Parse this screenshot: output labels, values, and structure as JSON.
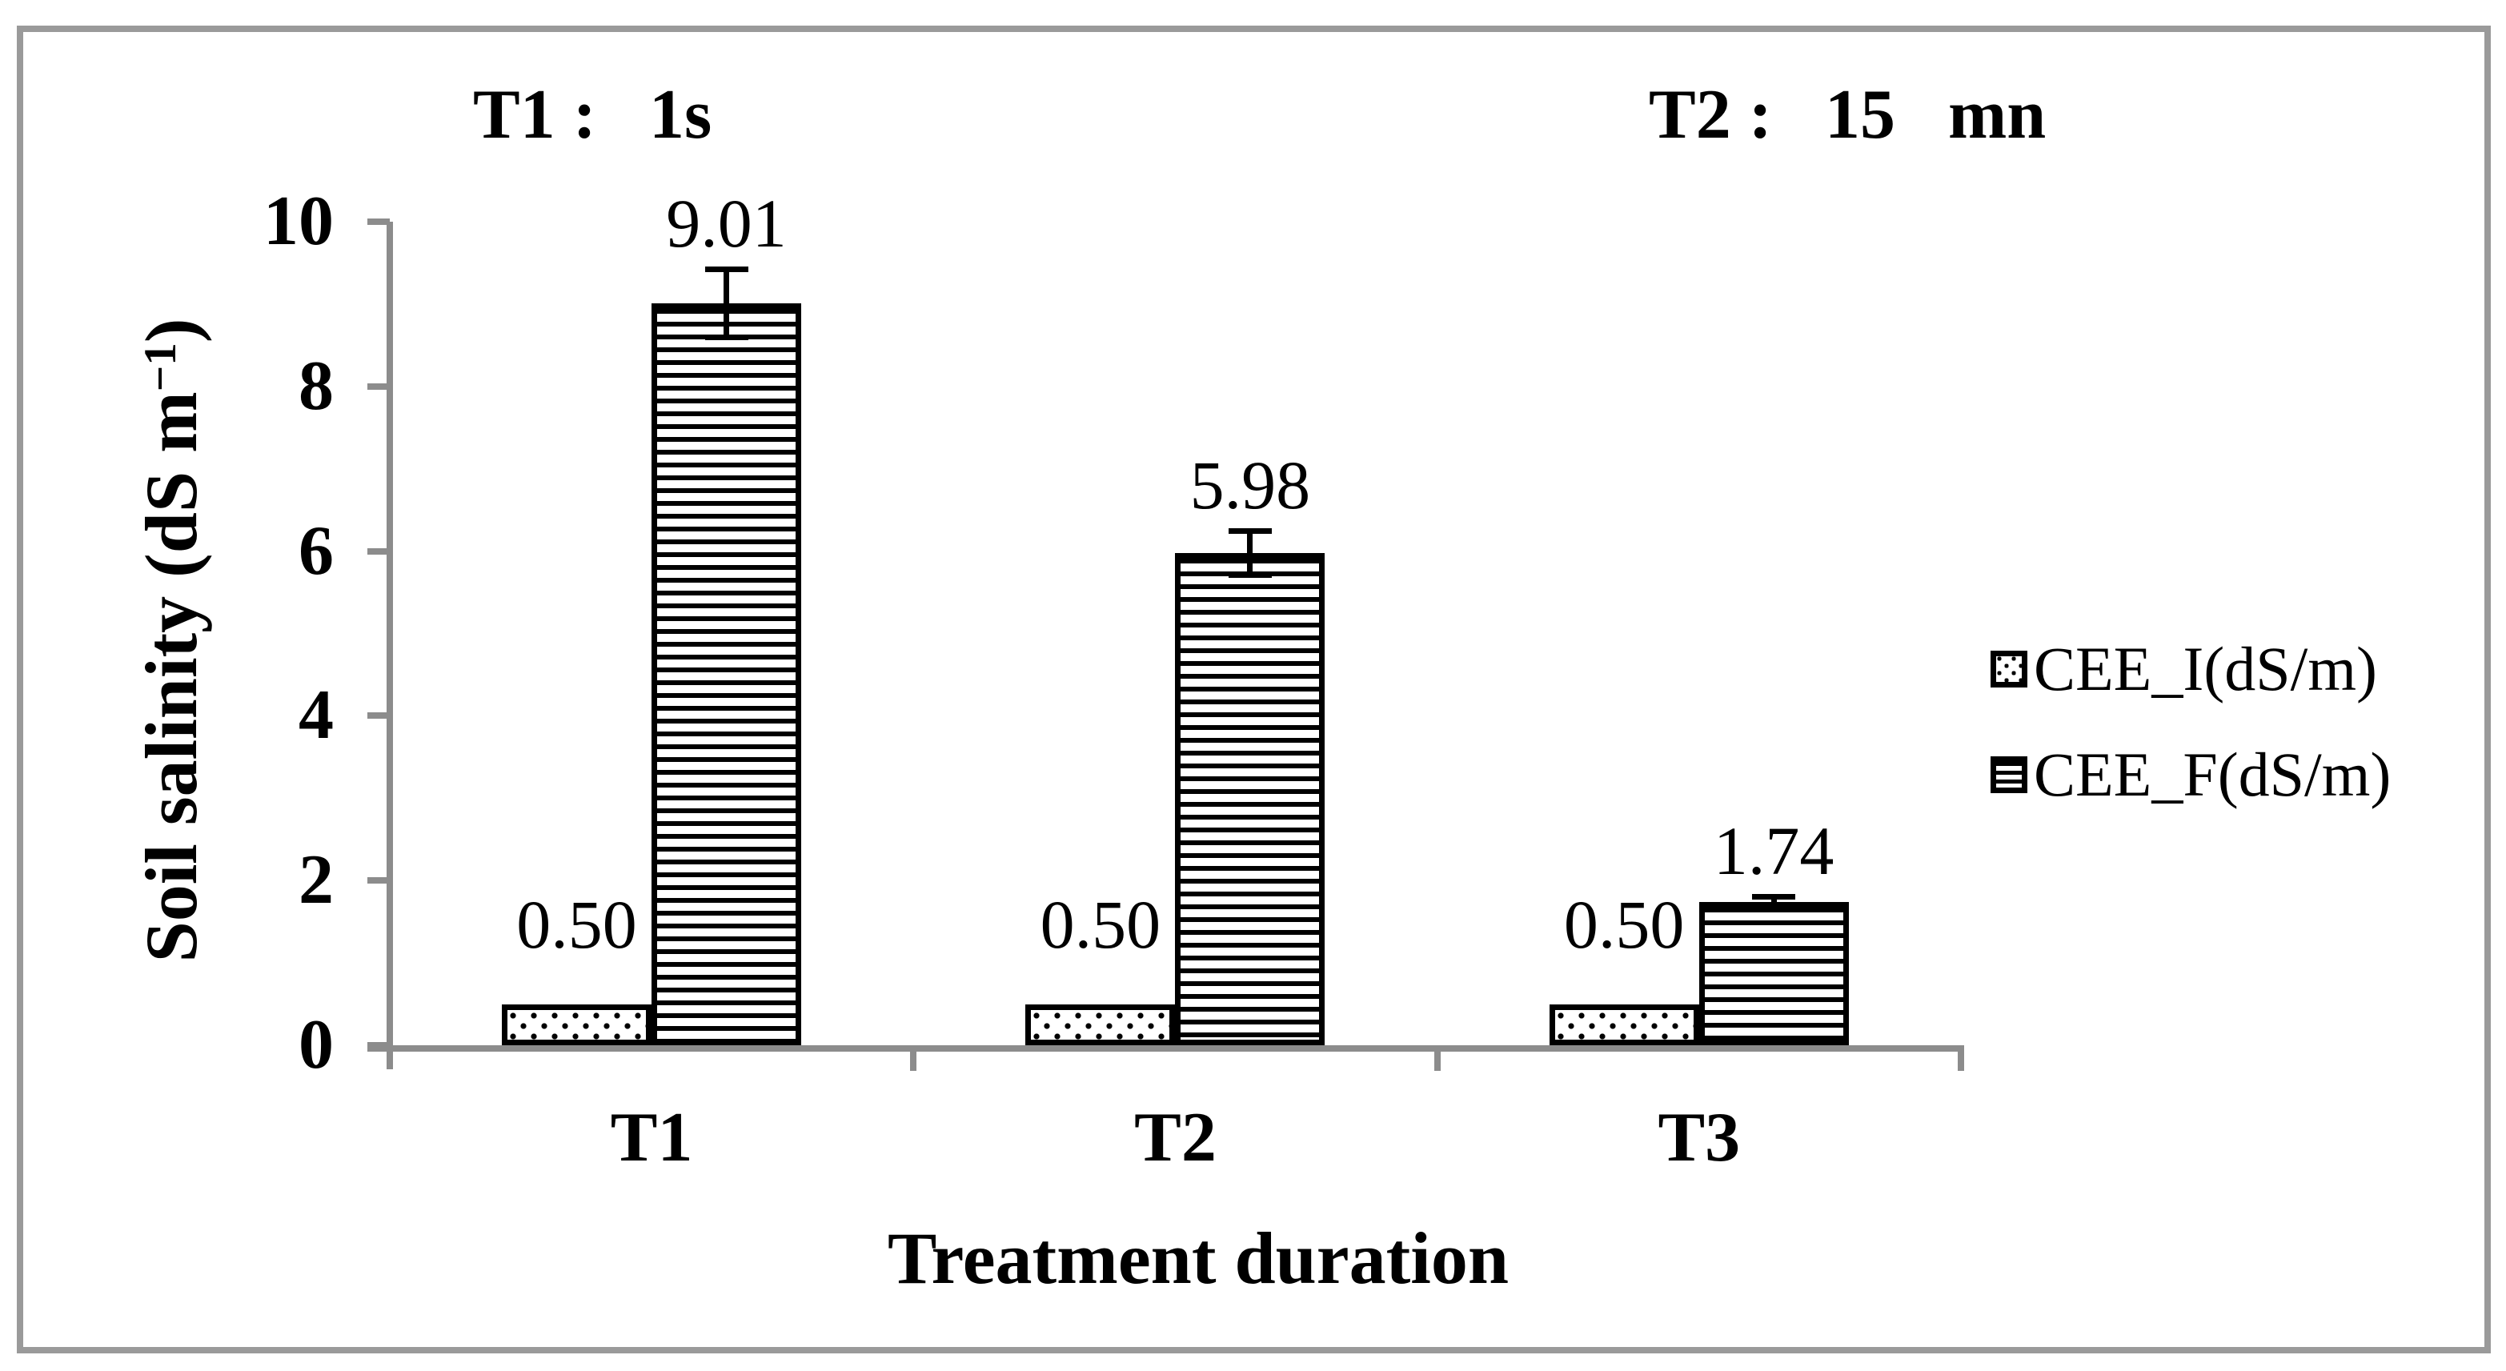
{
  "chart_data": {
    "type": "bar",
    "annotations": [
      {
        "text": "T1 :   1s"
      },
      {
        "text": "T2 :   15   mn"
      }
    ],
    "xlabel": "Treatment duration",
    "ylabel": "Soil salinity (dS m−1)",
    "ylabel_parts": {
      "prefix": "Soil salinity (dS m",
      "sup": "−1",
      "suffix": ")"
    },
    "categories": [
      "T1",
      "T2",
      "T3"
    ],
    "yticks": [
      0,
      2,
      4,
      6,
      8,
      10
    ],
    "ylim": [
      0,
      10
    ],
    "grid": false,
    "legend_position": "right",
    "series": [
      {
        "name": "CEE_I(dS/m)",
        "pattern": "dots",
        "values": [
          0.5,
          0.5,
          0.5
        ],
        "errors": [
          0,
          0,
          0
        ],
        "labels": [
          "0.50",
          "0.50",
          "0.50"
        ]
      },
      {
        "name": "CEE_F(dS/m)",
        "pattern": "hlines",
        "values": [
          9.01,
          5.98,
          1.74
        ],
        "errors": [
          0.45,
          0.3,
          0.1
        ],
        "labels": [
          "9.01",
          "5.98",
          "1.74"
        ]
      }
    ]
  },
  "colors": {
    "bar_fill": "#ffffff",
    "bar_stroke": "#000000",
    "axis": "#8c8c8c",
    "frame": "#9a9a9a",
    "text": "#000000"
  }
}
